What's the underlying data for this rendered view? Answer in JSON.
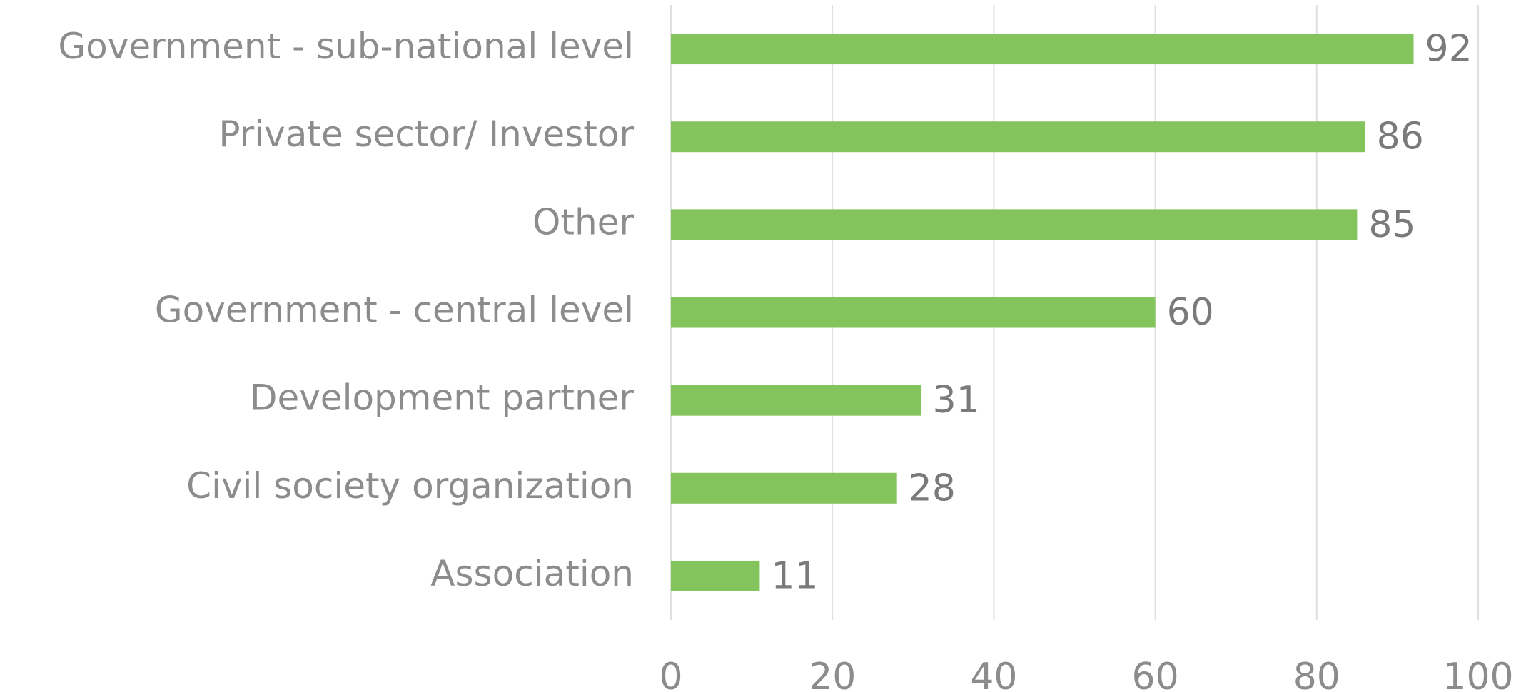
{
  "chart_data": {
    "type": "bar",
    "orientation": "horizontal",
    "categories": [
      "Government - sub-national level",
      "Private sector/ Investor",
      "Other",
      "Government - central level",
      "Development partner",
      "Civil society organization",
      "Association"
    ],
    "values": [
      92,
      86,
      85,
      60,
      31,
      28,
      11
    ],
    "color": "#84c45d",
    "xlim": [
      0,
      100
    ],
    "xticks": [
      0,
      20,
      40,
      60,
      80,
      100
    ],
    "grid": true
  }
}
